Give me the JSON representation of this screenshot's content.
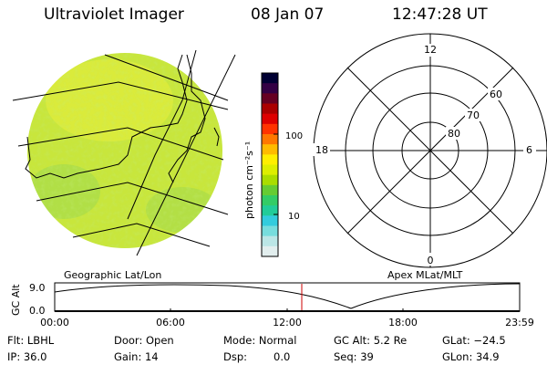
{
  "header": {
    "title": "Ultraviolet Imager",
    "date": "08 Jan 07",
    "time": "12:47:28 UT"
  },
  "colorbar": {
    "label": "photon cm⁻²s⁻¹",
    "tick_labels": [
      "100",
      "10"
    ],
    "scale": "log",
    "colors": [
      "#000033",
      "#330044",
      "#660022",
      "#aa0000",
      "#dd0000",
      "#ff3300",
      "#ff7700",
      "#ffbb00",
      "#ffee00",
      "#ddee00",
      "#aadd00",
      "#66cc33",
      "#33cc66",
      "#22cc99",
      "#33ccdd",
      "#77dddd",
      "#bbe6e6",
      "#e2eeee"
    ]
  },
  "left_panel": {
    "label": "Geographic Lat/Lon"
  },
  "polar_panel": {
    "label": "Apex MLat/MLT",
    "mlt_labels": {
      "top": "12",
      "bottom": "0",
      "left": "18",
      "right": "6"
    },
    "lat_labels": [
      "60",
      "70",
      "80"
    ]
  },
  "altitude_plot": {
    "ylabel": "GC Alt",
    "ytick": "9.0",
    "ytick2": "0.0",
    "xtick_labels": [
      "00:00",
      "06:00",
      "12:00",
      "18:00",
      "23:59"
    ],
    "marker_time": "12:47"
  },
  "status": {
    "flt": "Flt: LBHL",
    "door": "Door: Open",
    "mode": "Mode: Normal",
    "gc_alt": "GC Alt: 5.2 Re",
    "glat": "GLat: −24.5",
    "ip": "IP: 36.0",
    "gain": "Gain: 14",
    "dsp": "Dsp:",
    "dsp_value": "0.0",
    "seq": "Seq: 39",
    "glon": "GLon: 34.9"
  },
  "colors": {
    "grid": "#000000",
    "marker": "#cc0000",
    "disk_base": "#c8e63c"
  }
}
